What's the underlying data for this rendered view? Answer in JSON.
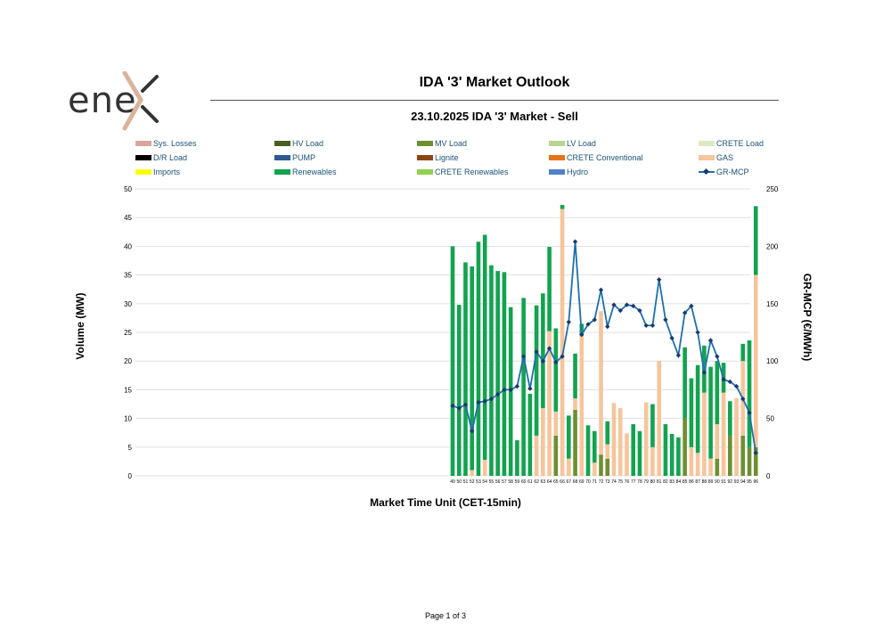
{
  "logo": {
    "text": "ene"
  },
  "header": {
    "title": "IDA '3' Market Outlook"
  },
  "chart_title": "23.10.2025  IDA '3' Market - Sell",
  "footer": {
    "page": "Page 1 of 3"
  },
  "legend": [
    {
      "name": "Sys. Losses",
      "color": "#d9a59d",
      "kind": "bar"
    },
    {
      "name": "HV Load",
      "color": "#4a5e23",
      "kind": "bar"
    },
    {
      "name": "MV Load",
      "color": "#6e8f30",
      "kind": "bar"
    },
    {
      "name": "LV Load",
      "color": "#b9d58f",
      "kind": "bar"
    },
    {
      "name": "CRETE Load",
      "color": "#dbeac3",
      "kind": "bar"
    },
    {
      "name": "D/R Load",
      "color": "#000000",
      "kind": "bar"
    },
    {
      "name": "PUMP",
      "color": "#2e5a8c",
      "kind": "bar"
    },
    {
      "name": "Lignite",
      "color": "#8b4513",
      "kind": "bar"
    },
    {
      "name": "CRETE Conventional",
      "color": "#e57317",
      "kind": "bar"
    },
    {
      "name": "GAS",
      "color": "#f6c59b",
      "kind": "bar"
    },
    {
      "name": "Imports",
      "color": "#ffff00",
      "kind": "bar"
    },
    {
      "name": "Renewables",
      "color": "#12a34f",
      "kind": "bar"
    },
    {
      "name": "CRETE Renewables",
      "color": "#92d050",
      "kind": "bar"
    },
    {
      "name": "Hydro",
      "color": "#4f81c7",
      "kind": "bar"
    },
    {
      "name": "GR-MCP",
      "color": "#1f6fad",
      "kind": "line"
    }
  ],
  "chart_data": {
    "type": "bar",
    "stacked": true,
    "xlabel": "Market Time Unit (CET-15min)",
    "ylabel": "Volume (MW)",
    "y2label": "GR-MCP (€/MWh)",
    "ylim": [
      0,
      50
    ],
    "y2lim": [
      0,
      250
    ],
    "yticks": [
      0,
      5,
      10,
      15,
      20,
      25,
      30,
      35,
      40,
      45,
      50
    ],
    "y2ticks": [
      0,
      50,
      100,
      150,
      200,
      250
    ],
    "grid": true,
    "legend_position": "top",
    "categories": [
      "49",
      "50",
      "51",
      "52",
      "53",
      "54",
      "55",
      "56",
      "57",
      "58",
      "59",
      "60",
      "61",
      "62",
      "63",
      "64",
      "65",
      "66",
      "67",
      "68",
      "69",
      "70",
      "71",
      "72",
      "73",
      "74",
      "75",
      "76",
      "77",
      "78",
      "79",
      "80",
      "81",
      "82",
      "83",
      "84",
      "85",
      "86",
      "87",
      "88",
      "89",
      "90",
      "91",
      "92",
      "93",
      "94",
      "95",
      "96"
    ],
    "series": [
      {
        "name": "MV Load",
        "color": "#6e8f30",
        "values": [
          0,
          0,
          0,
          0,
          0,
          0,
          0,
          0,
          0,
          0,
          0,
          0,
          0,
          0,
          0,
          0,
          7,
          0,
          0,
          11.5,
          0,
          0,
          0,
          3.7,
          3,
          0,
          0,
          0,
          0,
          0,
          0,
          0,
          0,
          0,
          0,
          0,
          10,
          0,
          0,
          0,
          0,
          3,
          0,
          7,
          0,
          7,
          5,
          5
        ]
      },
      {
        "name": "GAS",
        "color": "#f6c59b",
        "values": [
          0,
          0,
          0,
          1,
          0,
          2.8,
          0,
          0,
          0,
          0,
          0,
          0,
          0,
          7,
          11.8,
          25.2,
          4.2,
          46.5,
          3,
          2,
          24.5,
          0,
          2.3,
          25,
          2.5,
          12.7,
          11.8,
          7.4,
          0,
          0,
          12.8,
          5,
          20,
          0,
          0,
          0,
          0,
          5,
          4,
          14.5,
          3,
          6,
          14.5,
          0,
          13.5,
          13,
          0,
          30
        ]
      },
      {
        "name": "Renewables",
        "color": "#12a34f",
        "values": [
          40,
          29.8,
          37.2,
          35.5,
          40.8,
          39.2,
          36.7,
          35.7,
          35.5,
          29.4,
          6.2,
          31,
          14.3,
          22.7,
          20,
          14.7,
          14.5,
          0.7,
          7.5,
          7.8,
          2,
          8.8,
          5.5,
          0,
          4,
          0,
          0,
          0,
          9,
          7.8,
          0,
          7.5,
          0,
          9,
          7.3,
          6.7,
          12.4,
          12,
          15.3,
          8.2,
          16,
          11,
          5.2,
          6,
          0,
          3,
          18.6,
          12
        ]
      },
      {
        "name": "GR-MCP",
        "color": "#1f6fad",
        "kind": "line",
        "axis": "y2",
        "values": [
          61,
          59,
          62,
          39,
          64,
          65,
          67,
          71,
          75,
          75,
          78,
          104,
          76,
          108,
          100,
          111,
          99,
          104,
          134,
          204,
          123,
          132,
          136,
          162,
          130,
          149,
          144,
          149,
          148,
          144,
          131,
          131,
          171,
          136,
          120,
          105,
          142,
          148,
          125,
          90,
          118,
          104,
          84,
          82,
          78,
          67,
          55,
          20
        ]
      }
    ]
  }
}
